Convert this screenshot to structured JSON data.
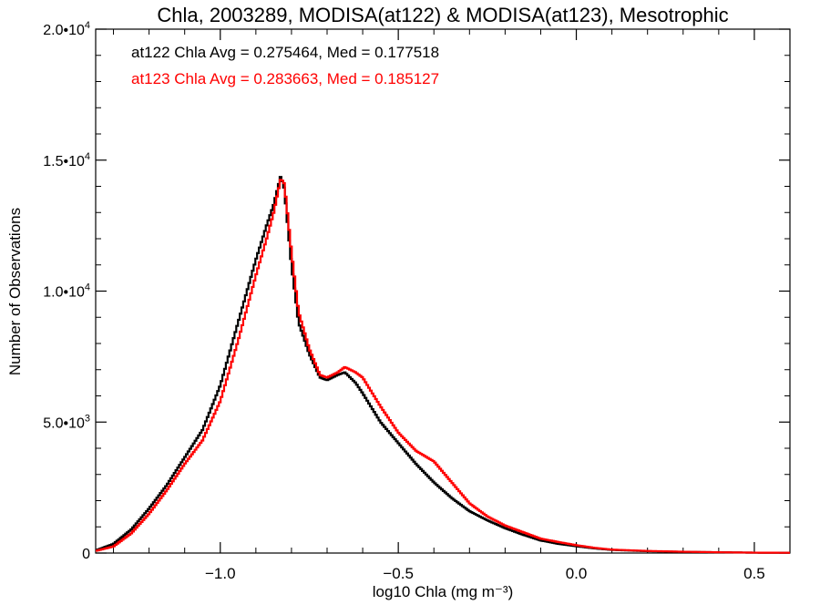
{
  "chart_data": {
    "type": "line",
    "title": "Chla, 2003289, MODISA(at122) & MODISA(at123), Mesotrophic",
    "xlabel": "log10 Chla (mg m⁻³)",
    "ylabel": "Number of Observations",
    "xlim": [
      -1.35,
      0.6
    ],
    "ylim": [
      0,
      20000
    ],
    "x_ticks": [
      {
        "value": -1.0,
        "label": "−1.0"
      },
      {
        "value": -0.5,
        "label": "−0.5"
      },
      {
        "value": 0.0,
        "label": "0.0"
      },
      {
        "value": 0.5,
        "label": "0.5"
      }
    ],
    "y_ticks": [
      {
        "value": 0,
        "label": "0"
      },
      {
        "value": 5000,
        "label": "5.0•10",
        "exp": "3"
      },
      {
        "value": 10000,
        "label": "1.0•10",
        "exp": "4"
      },
      {
        "value": 15000,
        "label": "1.5•10",
        "exp": "4"
      },
      {
        "value": 20000,
        "label": "2.0•10",
        "exp": "4"
      }
    ],
    "grid": false,
    "annotations": [
      {
        "text": "at122 Chla Avg = 0.275464, Med = 0.177518",
        "color": "#000000"
      },
      {
        "text": "at123 Chla Avg = 0.283663, Med = 0.185127",
        "color": "#ff0000"
      }
    ],
    "series": [
      {
        "color": "#000000",
        "x": [
          -1.35,
          -1.3,
          -1.25,
          -1.2,
          -1.15,
          -1.1,
          -1.05,
          -1.0,
          -0.95,
          -0.9,
          -0.87,
          -0.85,
          -0.83,
          -0.82,
          -0.8,
          -0.78,
          -0.75,
          -0.72,
          -0.7,
          -0.67,
          -0.65,
          -0.62,
          -0.6,
          -0.55,
          -0.5,
          -0.45,
          -0.4,
          -0.35,
          -0.3,
          -0.25,
          -0.2,
          -0.15,
          -0.1,
          -0.05,
          0.0,
          0.05,
          0.1,
          0.2,
          0.3,
          0.4,
          0.5,
          0.6
        ],
        "y": [
          100,
          350,
          900,
          1700,
          2600,
          3650,
          4700,
          6400,
          8800,
          11200,
          12500,
          13300,
          14400,
          13900,
          11000,
          8800,
          7600,
          6700,
          6600,
          6800,
          6900,
          6500,
          6100,
          5000,
          4200,
          3400,
          2700,
          2100,
          1600,
          1250,
          950,
          700,
          480,
          350,
          260,
          180,
          120,
          70,
          45,
          30,
          15,
          10
        ]
      },
      {
        "color": "#ff0000",
        "x": [
          -1.35,
          -1.3,
          -1.25,
          -1.2,
          -1.15,
          -1.1,
          -1.05,
          -1.0,
          -0.95,
          -0.9,
          -0.87,
          -0.85,
          -0.83,
          -0.82,
          -0.8,
          -0.78,
          -0.75,
          -0.72,
          -0.7,
          -0.67,
          -0.65,
          -0.62,
          -0.6,
          -0.55,
          -0.5,
          -0.45,
          -0.4,
          -0.35,
          -0.3,
          -0.25,
          -0.2,
          -0.15,
          -0.1,
          -0.05,
          0.0,
          0.05,
          0.1,
          0.2,
          0.3,
          0.4,
          0.5,
          0.6
        ],
        "y": [
          80,
          250,
          750,
          1500,
          2400,
          3400,
          4300,
          5800,
          8100,
          10600,
          12000,
          13000,
          14300,
          14100,
          11500,
          9200,
          7800,
          6800,
          6700,
          6900,
          7100,
          6900,
          6700,
          5600,
          4600,
          3900,
          3500,
          2700,
          1900,
          1400,
          1050,
          800,
          550,
          420,
          300,
          200,
          130,
          80,
          50,
          30,
          15,
          10
        ]
      }
    ]
  }
}
